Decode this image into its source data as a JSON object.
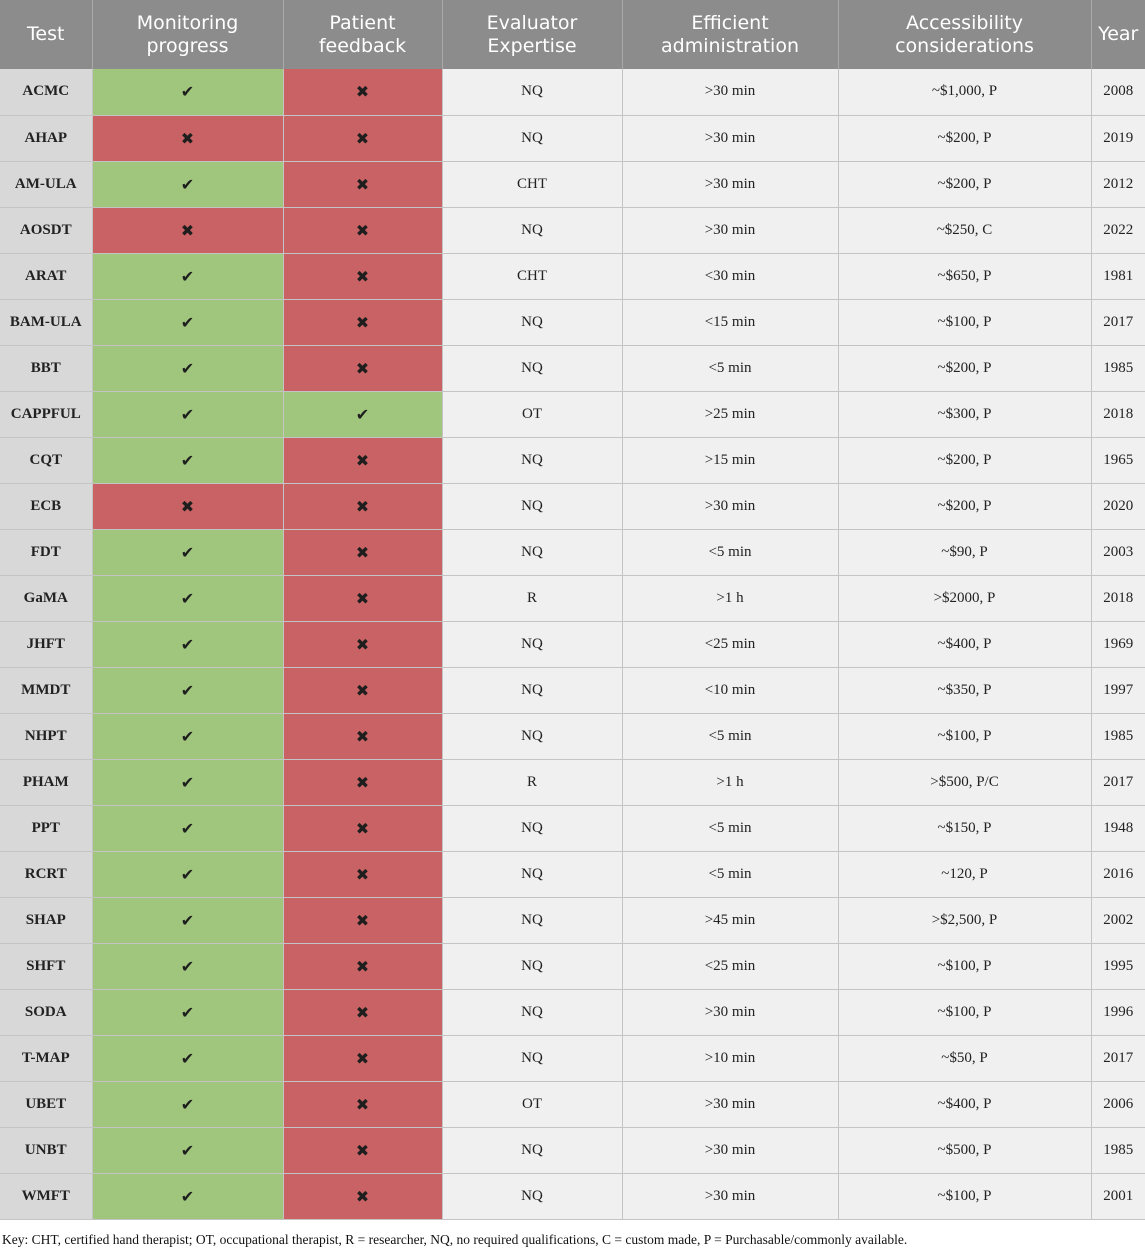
{
  "columns": [
    "Test",
    "Monitoring progress",
    "Patient feedback",
    "Evaluator Expertise",
    "Efficient administration",
    "Accessibility considerations",
    "Year"
  ],
  "marks": {
    "yes": "✔",
    "no": "✖"
  },
  "colors": {
    "yes": "#9fc67c",
    "no": "#c96264",
    "header": "#8c8c8c"
  },
  "rows": [
    {
      "test": "ACMC",
      "monitoring": "yes",
      "feedback": "no",
      "expertise": "NQ",
      "time": ">30 min",
      "access": "~$1,000, P",
      "year": "2008"
    },
    {
      "test": "AHAP",
      "monitoring": "no",
      "feedback": "no",
      "expertise": "NQ",
      "time": ">30 min",
      "access": "~$200, P",
      "year": "2019"
    },
    {
      "test": "AM-ULA",
      "monitoring": "yes",
      "feedback": "no",
      "expertise": "CHT",
      "time": ">30 min",
      "access": "~$200, P",
      "year": "2012"
    },
    {
      "test": "AOSDT",
      "monitoring": "no",
      "feedback": "no",
      "expertise": "NQ",
      "time": ">30 min",
      "access": "~$250, C",
      "year": "2022"
    },
    {
      "test": "ARAT",
      "monitoring": "yes",
      "feedback": "no",
      "expertise": "CHT",
      "time": "<30 min",
      "access": "~$650, P",
      "year": "1981"
    },
    {
      "test": "BAM-ULA",
      "monitoring": "yes",
      "feedback": "no",
      "expertise": "NQ",
      "time": "<15 min",
      "access": "~$100, P",
      "year": "2017"
    },
    {
      "test": "BBT",
      "monitoring": "yes",
      "feedback": "no",
      "expertise": "NQ",
      "time": "<5 min",
      "access": "~$200, P",
      "year": "1985"
    },
    {
      "test": "CAPPFUL",
      "monitoring": "yes",
      "feedback": "yes",
      "expertise": "OT",
      "time": ">25 min",
      "access": "~$300, P",
      "year": "2018"
    },
    {
      "test": "CQT",
      "monitoring": "yes",
      "feedback": "no",
      "expertise": "NQ",
      "time": ">15 min",
      "access": "~$200, P",
      "year": "1965"
    },
    {
      "test": "ECB",
      "monitoring": "no",
      "feedback": "no",
      "expertise": "NQ",
      "time": ">30 min",
      "access": "~$200, P",
      "year": "2020"
    },
    {
      "test": "FDT",
      "monitoring": "yes",
      "feedback": "no",
      "expertise": "NQ",
      "time": "<5 min",
      "access": "~$90, P",
      "year": "2003"
    },
    {
      "test": "GaMA",
      "monitoring": "yes",
      "feedback": "no",
      "expertise": "R",
      "time": ">1 h",
      "access": ">$2000, P",
      "year": "2018"
    },
    {
      "test": "JHFT",
      "monitoring": "yes",
      "feedback": "no",
      "expertise": "NQ",
      "time": "<25 min",
      "access": "~$400, P",
      "year": "1969"
    },
    {
      "test": "MMDT",
      "monitoring": "yes",
      "feedback": "no",
      "expertise": "NQ",
      "time": "<10 min",
      "access": "~$350, P",
      "year": "1997"
    },
    {
      "test": "NHPT",
      "monitoring": "yes",
      "feedback": "no",
      "expertise": "NQ",
      "time": "<5 min",
      "access": "~$100, P",
      "year": "1985"
    },
    {
      "test": "PHAM",
      "monitoring": "yes",
      "feedback": "no",
      "expertise": "R",
      "time": ">1 h",
      "access": ">$500, P/C",
      "year": "2017"
    },
    {
      "test": "PPT",
      "monitoring": "yes",
      "feedback": "no",
      "expertise": "NQ",
      "time": "<5 min",
      "access": "~$150, P",
      "year": "1948"
    },
    {
      "test": "RCRT",
      "monitoring": "yes",
      "feedback": "no",
      "expertise": "NQ",
      "time": "<5 min",
      "access": "~120, P",
      "year": "2016"
    },
    {
      "test": "SHAP",
      "monitoring": "yes",
      "feedback": "no",
      "expertise": "NQ",
      "time": ">45 min",
      "access": ">$2,500, P",
      "year": "2002"
    },
    {
      "test": "SHFT",
      "monitoring": "yes",
      "feedback": "no",
      "expertise": "NQ",
      "time": "<25 min",
      "access": "~$100, P",
      "year": "1995"
    },
    {
      "test": "SODA",
      "monitoring": "yes",
      "feedback": "no",
      "expertise": "NQ",
      "time": ">30 min",
      "access": "~$100, P",
      "year": "1996"
    },
    {
      "test": "T-MAP",
      "monitoring": "yes",
      "feedback": "no",
      "expertise": "NQ",
      "time": ">10 min",
      "access": "~$50, P",
      "year": "2017"
    },
    {
      "test": "UBET",
      "monitoring": "yes",
      "feedback": "no",
      "expertise": "OT",
      "time": ">30 min",
      "access": "~$400, P",
      "year": "2006"
    },
    {
      "test": "UNBT",
      "monitoring": "yes",
      "feedback": "no",
      "expertise": "NQ",
      "time": ">30 min",
      "access": "~$500, P",
      "year": "1985"
    },
    {
      "test": "WMFT",
      "monitoring": "yes",
      "feedback": "no",
      "expertise": "NQ",
      "time": ">30 min",
      "access": "~$100, P",
      "year": "2001"
    }
  ],
  "key": "Key: CHT, certified hand therapist; OT, occupational therapist, R = researcher, NQ, no required qualifications, C = custom made, P = Purchasable/commonly available."
}
